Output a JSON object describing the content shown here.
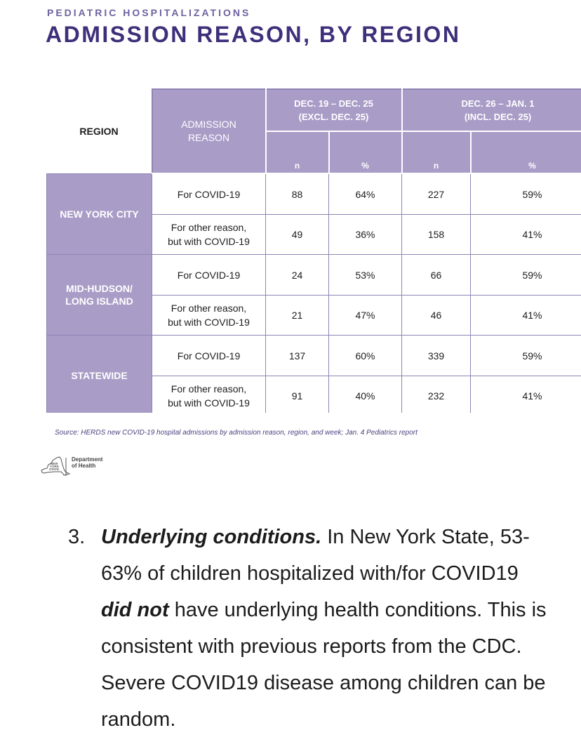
{
  "header": {
    "kicker": "PEDIATRIC HOSPITALIZATIONS",
    "title": "ADMISSION REASON, BY REGION"
  },
  "table": {
    "col_region": "REGION",
    "col_reason_line1": "ADMISSION",
    "col_reason_line2": "REASON",
    "period1_line1": "DEC. 19 – DEC. 25",
    "period1_line2": "(EXCL. DEC. 25)",
    "period2_line1": "DEC. 26 – JAN. 1",
    "period2_line2": "(INCL. DEC. 25)",
    "unit_n": "n",
    "unit_pct": "%",
    "reason_covid": "For COVID-19",
    "reason_other_line1": "For other reason,",
    "reason_other_line2": "but with COVID-19",
    "regions": [
      {
        "name_line1": "NEW YORK CITY",
        "name_line2": "",
        "rows": [
          {
            "n1": "88",
            "p1": "64%",
            "n2": "227",
            "p2": "59%"
          },
          {
            "n1": "49",
            "p1": "36%",
            "n2": "158",
            "p2": "41%"
          }
        ]
      },
      {
        "name_line1": "MID-HUDSON/",
        "name_line2": "LONG ISLAND",
        "rows": [
          {
            "n1": "24",
            "p1": "53%",
            "n2": "66",
            "p2": "59%"
          },
          {
            "n1": "21",
            "p1": "47%",
            "n2": "46",
            "p2": "41%"
          }
        ]
      },
      {
        "name_line1": "STATEWIDE",
        "name_line2": "",
        "rows": [
          {
            "n1": "137",
            "p1": "60%",
            "n2": "339",
            "p2": "59%"
          },
          {
            "n1": "91",
            "p1": "40%",
            "n2": "232",
            "p2": "41%"
          }
        ]
      }
    ]
  },
  "source": "Source: HERDS new COVID-19 hospital admissions by admission reason, region, and week; Jan. 4 Pediatrics report",
  "logo": {
    "state_line1": "NEW",
    "state_line2": "YORK",
    "state_line3": "STATE",
    "dept_line1": "Department",
    "dept_line2": "of Health"
  },
  "paragraph": {
    "number": "3.",
    "lead": "Underlying conditions.",
    "text_before": " In New York State, 53-63% of children hospitalized with/for COVID19 ",
    "emphasis": "did not",
    "text_after": " have underlying health conditions. This is consistent with previous reports from the CDC. Severe COVID19 disease among children can be random."
  },
  "colors": {
    "header_purple": "#a99cc7",
    "title_purple": "#3f2f7a",
    "border_purple": "#8f84b5"
  }
}
